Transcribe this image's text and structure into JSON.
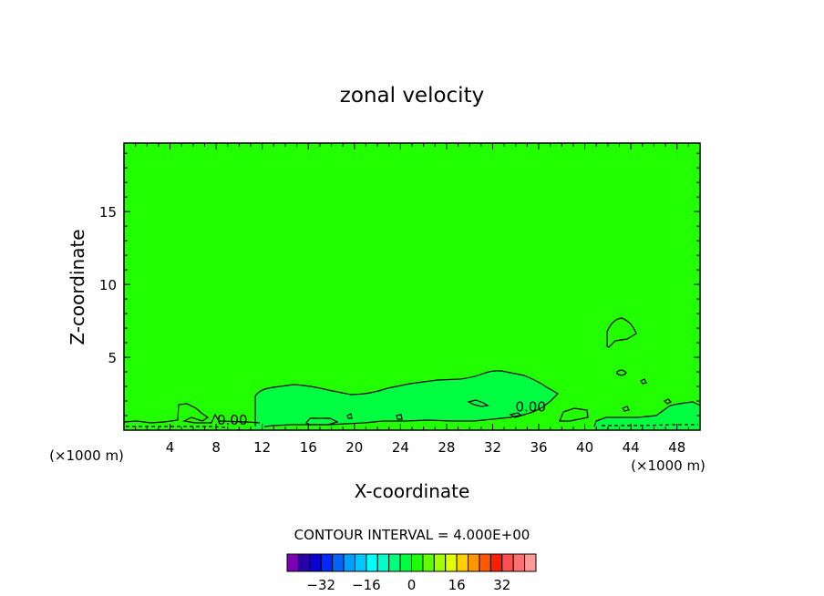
{
  "chart_data": {
    "type": "contour",
    "title": "zonal velocity",
    "xlabel": "X-coordinate",
    "ylabel": "Z-coordinate",
    "x_unit_left": "(×1000 m)",
    "x_unit_right": "(×1000 m)",
    "xlim": [
      0,
      50
    ],
    "ylim": [
      0,
      19.7
    ],
    "x_ticks": [
      4,
      8,
      12,
      16,
      20,
      24,
      28,
      32,
      36,
      40,
      44,
      48
    ],
    "y_ticks": [
      5,
      10,
      15
    ],
    "contour_interval_text": "CONTOUR INTERVAL = 4.000E+00",
    "contour_labels": [
      {
        "text": "0.00",
        "x": 9.4,
        "y": 0.7
      },
      {
        "text": "0.00",
        "x": 35.3,
        "y": 1.6
      }
    ],
    "colorbar": {
      "colors": [
        "#7a00b4",
        "#2a00a8",
        "#0a00d0",
        "#0028ff",
        "#0064ff",
        "#00a0ff",
        "#00c8ff",
        "#00ffff",
        "#00ffc8",
        "#00ff80",
        "#00ff40",
        "#20ff00",
        "#60ff00",
        "#a0ff00",
        "#e0ff00",
        "#ffd000",
        "#ff9600",
        "#ff5a00",
        "#ff1e00",
        "#ff5050",
        "#ff7070",
        "#ff9a9a"
      ],
      "tick_labels": [
        "−32",
        "−16",
        "0",
        "16",
        "32"
      ],
      "tick_values": [
        -32,
        -16,
        0,
        16,
        32
      ]
    },
    "colors": {
      "background_field": "#22ff00",
      "positive_region": "#00ff40",
      "contour_line": "#000000"
    }
  }
}
